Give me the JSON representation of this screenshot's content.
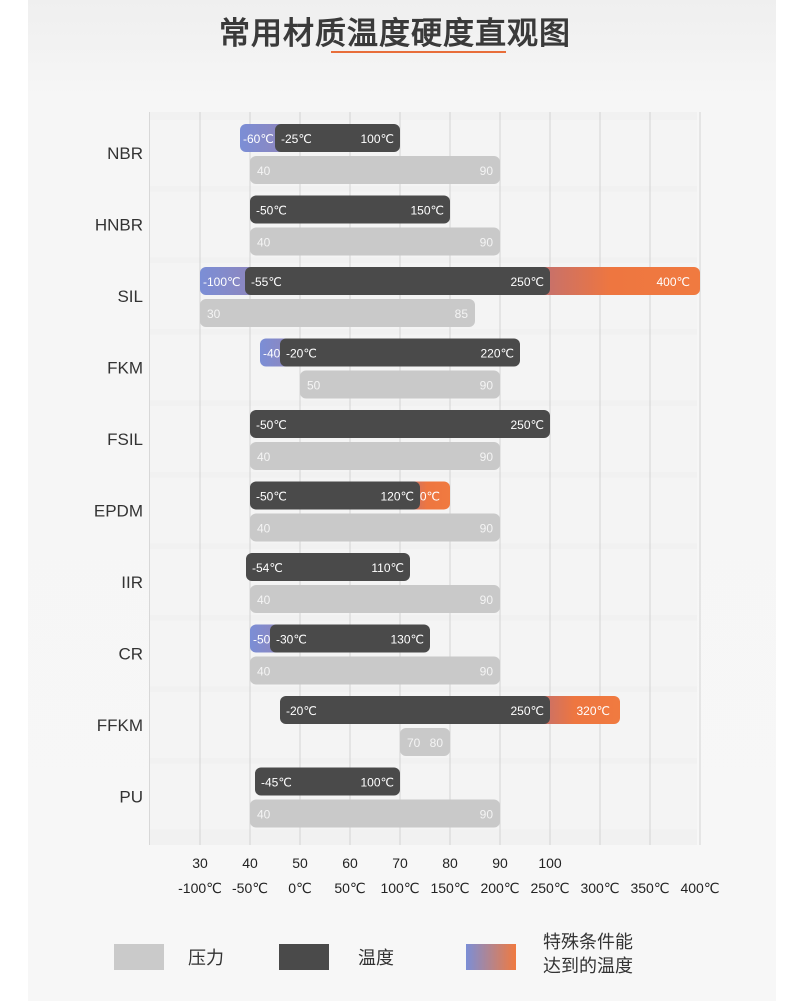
{
  "title": "常用材质温度硬度直观图",
  "chart_data": {
    "type": "bar",
    "title": "常用材质温度硬度直观图",
    "categories": [
      "NBR",
      "HNBR",
      "SIL",
      "FKM",
      "FSIL",
      "EPDM",
      "IIR",
      "CR",
      "FFKM",
      "PU"
    ],
    "hardness_axis": {
      "ticks": [
        "30",
        "40",
        "50",
        "60",
        "70",
        "80",
        "90",
        "100"
      ],
      "range": [
        20,
        120
      ]
    },
    "temperature_axis": {
      "ticks": [
        "-100℃",
        "-50℃",
        "0℃",
        "50℃",
        "100℃",
        "150℃",
        "200℃",
        "250℃",
        "300℃",
        "350℃",
        "400℃"
      ],
      "range": [
        -150,
        400
      ]
    },
    "grid": true,
    "series": [
      {
        "name": "压力",
        "values": [
          {
            "min": 40,
            "max": 90,
            "min_label": "40",
            "max_label": "90"
          },
          {
            "min": 40,
            "max": 90,
            "min_label": "40",
            "max_label": "90"
          },
          {
            "min": 30,
            "max": 85,
            "min_label": "30",
            "max_label": "85"
          },
          {
            "min": 50,
            "max": 90,
            "min_label": "50",
            "max_label": "90"
          },
          {
            "min": 40,
            "max": 90,
            "min_label": "40",
            "max_label": "90"
          },
          {
            "min": 40,
            "max": 90,
            "min_label": "40",
            "max_label": "90"
          },
          {
            "min": 40,
            "max": 90,
            "min_label": "40",
            "max_label": "90"
          },
          {
            "min": 40,
            "max": 90,
            "min_label": "40",
            "max_label": "90"
          },
          {
            "min": 70,
            "max": 80,
            "min_label": "70",
            "max_label": "80"
          },
          {
            "min": 40,
            "max": 90,
            "min_label": "40",
            "max_label": "90"
          }
        ]
      },
      {
        "name": "温度",
        "values": [
          {
            "min": -25,
            "max": 100,
            "min_label": "-25℃",
            "max_label": "100℃"
          },
          {
            "min": -50,
            "max": 150,
            "min_label": "-50℃",
            "max_label": "150℃"
          },
          {
            "min": -55,
            "max": 250,
            "min_label": "-55℃",
            "max_label": "250℃"
          },
          {
            "min": -20,
            "max": 220,
            "min_label": "-20℃",
            "max_label": "220℃"
          },
          {
            "min": -50,
            "max": 250,
            "min_label": "-50℃",
            "max_label": "250℃"
          },
          {
            "min": -50,
            "max": 120,
            "min_label": "-50℃",
            "max_label": "120℃"
          },
          {
            "min": -54,
            "max": 110,
            "min_label": "-54℃",
            "max_label": "110℃"
          },
          {
            "min": -30,
            "max": 130,
            "min_label": "-30℃",
            "max_label": "130℃"
          },
          {
            "min": -20,
            "max": 250,
            "min_label": "-20℃",
            "max_label": "250℃"
          },
          {
            "min": -45,
            "max": 100,
            "min_label": "-45℃",
            "max_label": "100℃"
          }
        ]
      },
      {
        "name": "特殊条件能达到的温度",
        "values": [
          {
            "low": -60,
            "low_label": "-60℃"
          },
          null,
          {
            "low": -100,
            "low_label": "-100℃",
            "high": 400,
            "high_label": "400℃"
          },
          {
            "low": -40,
            "low_label": "-40℃"
          },
          null,
          {
            "high": 150,
            "high_label": "150℃"
          },
          null,
          {
            "low": -50,
            "low_label": "-50℃"
          },
          {
            "high": 320,
            "high_label": "320℃"
          },
          null
        ]
      }
    ]
  },
  "legend": {
    "items": [
      {
        "label": "压力",
        "color": "#cacaca"
      },
      {
        "label": "温度",
        "color": "#4a4a4a"
      },
      {
        "label_line1": "特殊条件能",
        "label_line2": "达到的温度",
        "color_start": "#7b8ed6",
        "color_end": "#f07a40"
      }
    ]
  },
  "colors": {
    "pressure": "#c9c9c9",
    "temperature": "#4a4a4a",
    "cold": "#7b8ed6",
    "hot": "#ee7640"
  }
}
